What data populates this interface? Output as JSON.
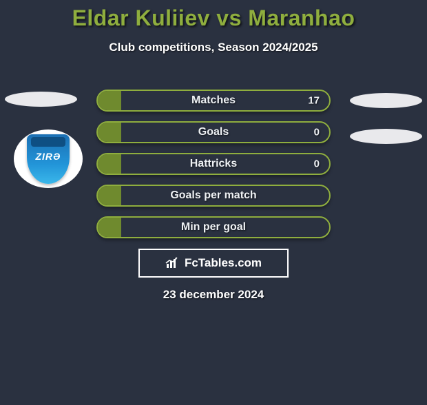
{
  "title": {
    "text": "Eldar Kuliiev vs Maranhao",
    "color": "#8fae3e"
  },
  "subtitle": "Club competitions, Season 2024/2025",
  "badge": {
    "text": "ZIRƏ"
  },
  "bars": {
    "border_color": "#8fae3e",
    "fill_color": "#6f8a2e",
    "rows": [
      {
        "label": "Matches",
        "value": "17",
        "fill_pct": 10
      },
      {
        "label": "Goals",
        "value": "0",
        "fill_pct": 10
      },
      {
        "label": "Hattricks",
        "value": "0",
        "fill_pct": 10
      },
      {
        "label": "Goals per match",
        "value": "",
        "fill_pct": 10
      },
      {
        "label": "Min per goal",
        "value": "",
        "fill_pct": 10
      }
    ]
  },
  "footer_brand": "FcTables.com",
  "date": "23 december 2024"
}
